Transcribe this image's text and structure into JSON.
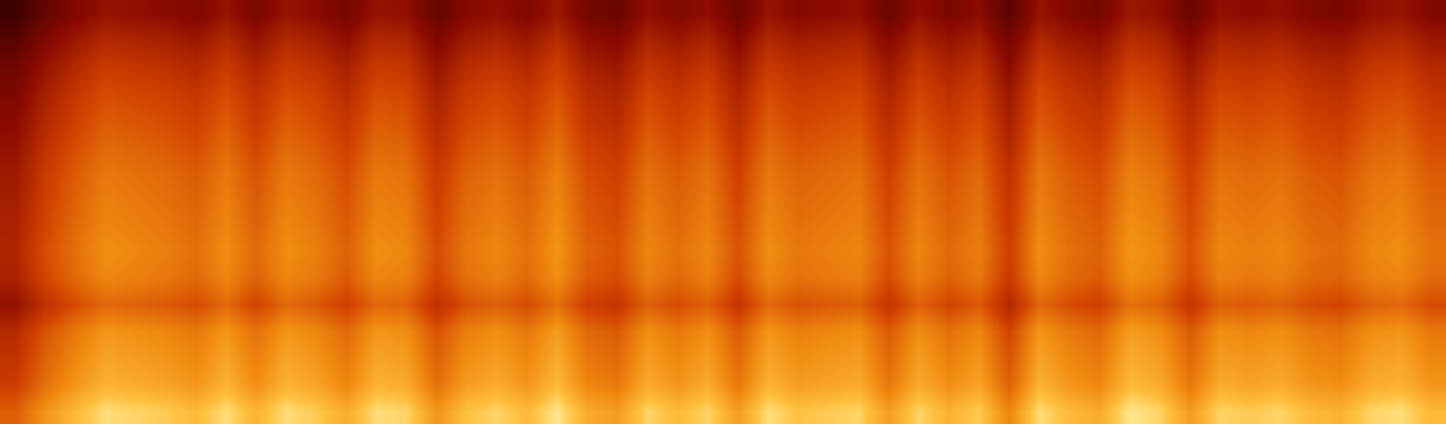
{
  "chart_data": {
    "type": "heatmap",
    "zlim": [
      0,
      100
    ],
    "tick_labels": false,
    "grid": false,
    "cells": [
      [
        63,
        78,
        88,
        96,
        94,
        92,
        88,
        96,
        86,
        96,
        92,
        84,
        96,
        94,
        78,
        90,
        94,
        88,
        98,
        84,
        80,
        94,
        88,
        94,
        80,
        96,
        90,
        92,
        94,
        80,
        94,
        86,
        92,
        74,
        96,
        88,
        84,
        98,
        94,
        80,
        94,
        92,
        94,
        88,
        86,
        94,
        96,
        88
      ],
      [
        53,
        68,
        78,
        86,
        84,
        82,
        78,
        86,
        76,
        86,
        82,
        74,
        86,
        84,
        68,
        80,
        84,
        78,
        88,
        74,
        70,
        84,
        78,
        84,
        70,
        86,
        80,
        82,
        84,
        70,
        84,
        76,
        82,
        64,
        86,
        78,
        74,
        88,
        84,
        70,
        84,
        82,
        84,
        78,
        76,
        84,
        86,
        78
      ],
      [
        49,
        64,
        74,
        82,
        80,
        78,
        74,
        82,
        72,
        82,
        78,
        70,
        82,
        80,
        64,
        76,
        80,
        74,
        84,
        70,
        66,
        80,
        74,
        80,
        66,
        82,
        76,
        78,
        80,
        66,
        80,
        72,
        78,
        60,
        82,
        74,
        70,
        84,
        80,
        66,
        80,
        78,
        80,
        74,
        72,
        80,
        82,
        74
      ],
      [
        45,
        60,
        70,
        78,
        76,
        74,
        70,
        78,
        68,
        78,
        74,
        66,
        78,
        76,
        60,
        72,
        76,
        70,
        80,
        66,
        62,
        76,
        70,
        76,
        62,
        78,
        72,
        74,
        76,
        62,
        76,
        68,
        74,
        56,
        78,
        70,
        66,
        80,
        76,
        62,
        76,
        74,
        76,
        70,
        68,
        76,
        78,
        70
      ],
      [
        33,
        48,
        58,
        66,
        64,
        62,
        58,
        66,
        56,
        66,
        62,
        54,
        66,
        64,
        48,
        60,
        64,
        58,
        68,
        54,
        50,
        64,
        58,
        64,
        50,
        66,
        60,
        62,
        64,
        50,
        64,
        56,
        62,
        44,
        66,
        58,
        54,
        68,
        64,
        50,
        64,
        62,
        64,
        58,
        56,
        64,
        66,
        58
      ],
      [
        41,
        56,
        66,
        74,
        72,
        70,
        66,
        74,
        64,
        74,
        70,
        62,
        74,
        72,
        56,
        68,
        72,
        66,
        76,
        62,
        58,
        72,
        66,
        72,
        58,
        74,
        68,
        70,
        72,
        58,
        72,
        64,
        70,
        52,
        74,
        66,
        62,
        76,
        72,
        58,
        72,
        70,
        72,
        66,
        64,
        72,
        74,
        66
      ],
      [
        43,
        58,
        68,
        76,
        74,
        72,
        68,
        76,
        66,
        76,
        72,
        64,
        76,
        74,
        58,
        70,
        74,
        68,
        78,
        64,
        60,
        74,
        68,
        74,
        60,
        76,
        70,
        72,
        74,
        60,
        74,
        66,
        72,
        54,
        76,
        68,
        64,
        78,
        74,
        60,
        74,
        72,
        74,
        68,
        66,
        74,
        76,
        68
      ],
      [
        41,
        56,
        66,
        74,
        72,
        70,
        66,
        74,
        64,
        74,
        70,
        62,
        74,
        72,
        56,
        68,
        72,
        66,
        76,
        62,
        58,
        72,
        66,
        72,
        58,
        74,
        68,
        70,
        72,
        58,
        72,
        64,
        70,
        52,
        74,
        66,
        62,
        76,
        72,
        58,
        72,
        70,
        72,
        66,
        64,
        72,
        74,
        66
      ],
      [
        39,
        54,
        64,
        72,
        70,
        68,
        64,
        72,
        62,
        72,
        68,
        60,
        72,
        70,
        54,
        66,
        70,
        64,
        74,
        60,
        56,
        70,
        64,
        70,
        56,
        72,
        66,
        68,
        70,
        56,
        70,
        62,
        68,
        50,
        72,
        64,
        60,
        74,
        70,
        56,
        70,
        68,
        70,
        64,
        62,
        70,
        72,
        64
      ],
      [
        37,
        52,
        62,
        70,
        68,
        66,
        62,
        70,
        60,
        70,
        66,
        58,
        70,
        68,
        52,
        64,
        68,
        62,
        72,
        58,
        54,
        68,
        62,
        68,
        54,
        70,
        64,
        66,
        68,
        54,
        68,
        60,
        66,
        48,
        70,
        62,
        58,
        72,
        68,
        54,
        68,
        66,
        68,
        62,
        60,
        68,
        70,
        62
      ],
      [
        33,
        48,
        58,
        66,
        64,
        62,
        58,
        66,
        56,
        66,
        62,
        54,
        66,
        64,
        48,
        60,
        64,
        58,
        68,
        54,
        50,
        64,
        58,
        64,
        50,
        66,
        60,
        62,
        64,
        50,
        64,
        56,
        62,
        44,
        66,
        58,
        54,
        68,
        64,
        50,
        64,
        62,
        64,
        58,
        56,
        64,
        66,
        58
      ],
      [
        29,
        44,
        54,
        62,
        60,
        58,
        54,
        62,
        52,
        62,
        58,
        50,
        62,
        60,
        44,
        56,
        60,
        54,
        64,
        50,
        46,
        60,
        54,
        60,
        46,
        62,
        56,
        58,
        60,
        46,
        60,
        52,
        58,
        40,
        62,
        54,
        50,
        64,
        60,
        46,
        60,
        58,
        60,
        54,
        52,
        60,
        62,
        54
      ],
      [
        25,
        40,
        50,
        58,
        56,
        54,
        50,
        58,
        48,
        58,
        54,
        46,
        58,
        56,
        40,
        52,
        56,
        50,
        60,
        46,
        42,
        56,
        50,
        56,
        42,
        58,
        52,
        54,
        56,
        42,
        56,
        48,
        54,
        36,
        58,
        50,
        46,
        60,
        56,
        42,
        56,
        54,
        56,
        50,
        48,
        56,
        58,
        50
      ],
      [
        19,
        34,
        44,
        52,
        50,
        48,
        44,
        52,
        42,
        52,
        48,
        40,
        52,
        50,
        34,
        46,
        50,
        44,
        54,
        40,
        36,
        50,
        44,
        50,
        36,
        52,
        46,
        48,
        50,
        36,
        50,
        42,
        48,
        30,
        52,
        44,
        40,
        54,
        50,
        36,
        50,
        48,
        50,
        44,
        42,
        50,
        52,
        44
      ],
      [
        11,
        26,
        36,
        44,
        42,
        40,
        36,
        44,
        34,
        44,
        40,
        32,
        44,
        42,
        26,
        38,
        42,
        36,
        46,
        32,
        28,
        42,
        36,
        42,
        28,
        44,
        38,
        40,
        42,
        28,
        42,
        34,
        40,
        22,
        44,
        36,
        32,
        46,
        42,
        28,
        42,
        40,
        42,
        36,
        34,
        42,
        44,
        36
      ],
      [
        1,
        16,
        26,
        34,
        32,
        30,
        26,
        34,
        24,
        34,
        30,
        22,
        34,
        32,
        16,
        28,
        32,
        26,
        36,
        22,
        18,
        32,
        26,
        32,
        18,
        34,
        28,
        30,
        32,
        18,
        32,
        24,
        30,
        12,
        34,
        26,
        22,
        36,
        32,
        18,
        32,
        30,
        32,
        26,
        24,
        32,
        34,
        26
      ]
    ]
  }
}
